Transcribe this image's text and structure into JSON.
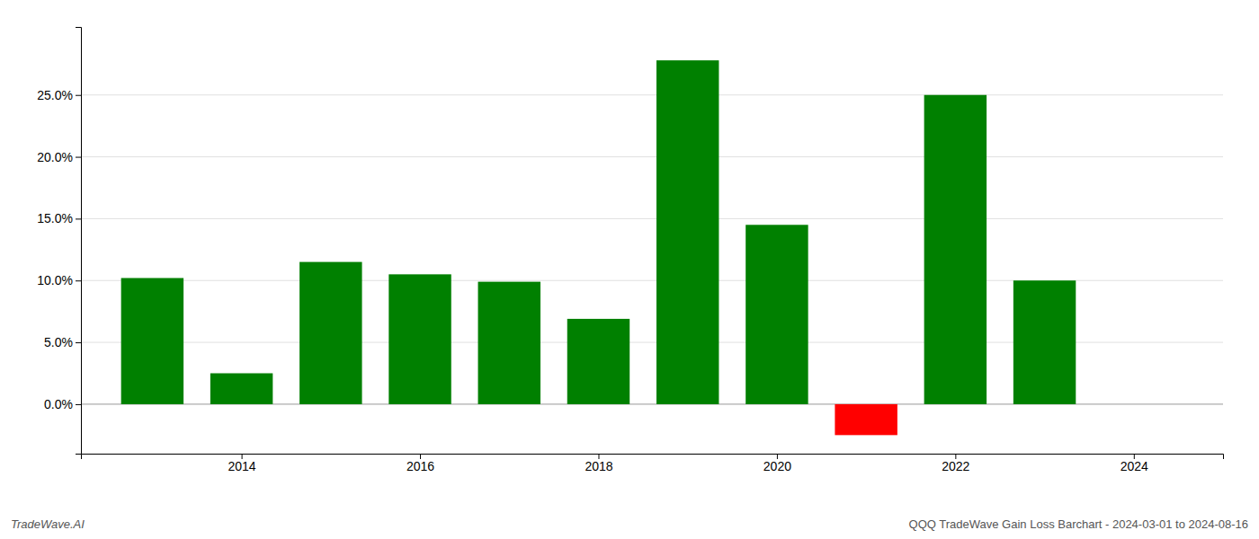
{
  "chart_data": {
    "type": "bar",
    "x": [
      2013,
      2014,
      2015,
      2016,
      2017,
      2018,
      2019,
      2020,
      2021,
      2022,
      2023
    ],
    "values": [
      0.102,
      0.025,
      0.115,
      0.105,
      0.099,
      0.069,
      0.278,
      0.145,
      -0.025,
      0.25,
      0.1
    ],
    "colors": [
      "#008000",
      "#008000",
      "#008000",
      "#008000",
      "#008000",
      "#008000",
      "#008000",
      "#008000",
      "#ff0000",
      "#008000",
      "#008000"
    ],
    "xlim": [
      2012.2,
      2025.0
    ],
    "xticks": [
      2014,
      2016,
      2018,
      2020,
      2022,
      2024
    ],
    "ylim": [
      -0.04,
      0.305
    ],
    "yticks": [
      {
        "value": 0.0,
        "label": "0.0%"
      },
      {
        "value": 0.05,
        "label": "5.0%"
      },
      {
        "value": 0.1,
        "label": "10.0%"
      },
      {
        "value": 0.15,
        "label": "15.0%"
      },
      {
        "value": 0.2,
        "label": "20.0%"
      },
      {
        "value": 0.25,
        "label": "25.0%"
      }
    ],
    "grid": true,
    "annotations": [
      "TradeWave.AI",
      "QQQ TradeWave Gain Loss Barchart - 2024-03-01 to 2024-08-16"
    ]
  }
}
